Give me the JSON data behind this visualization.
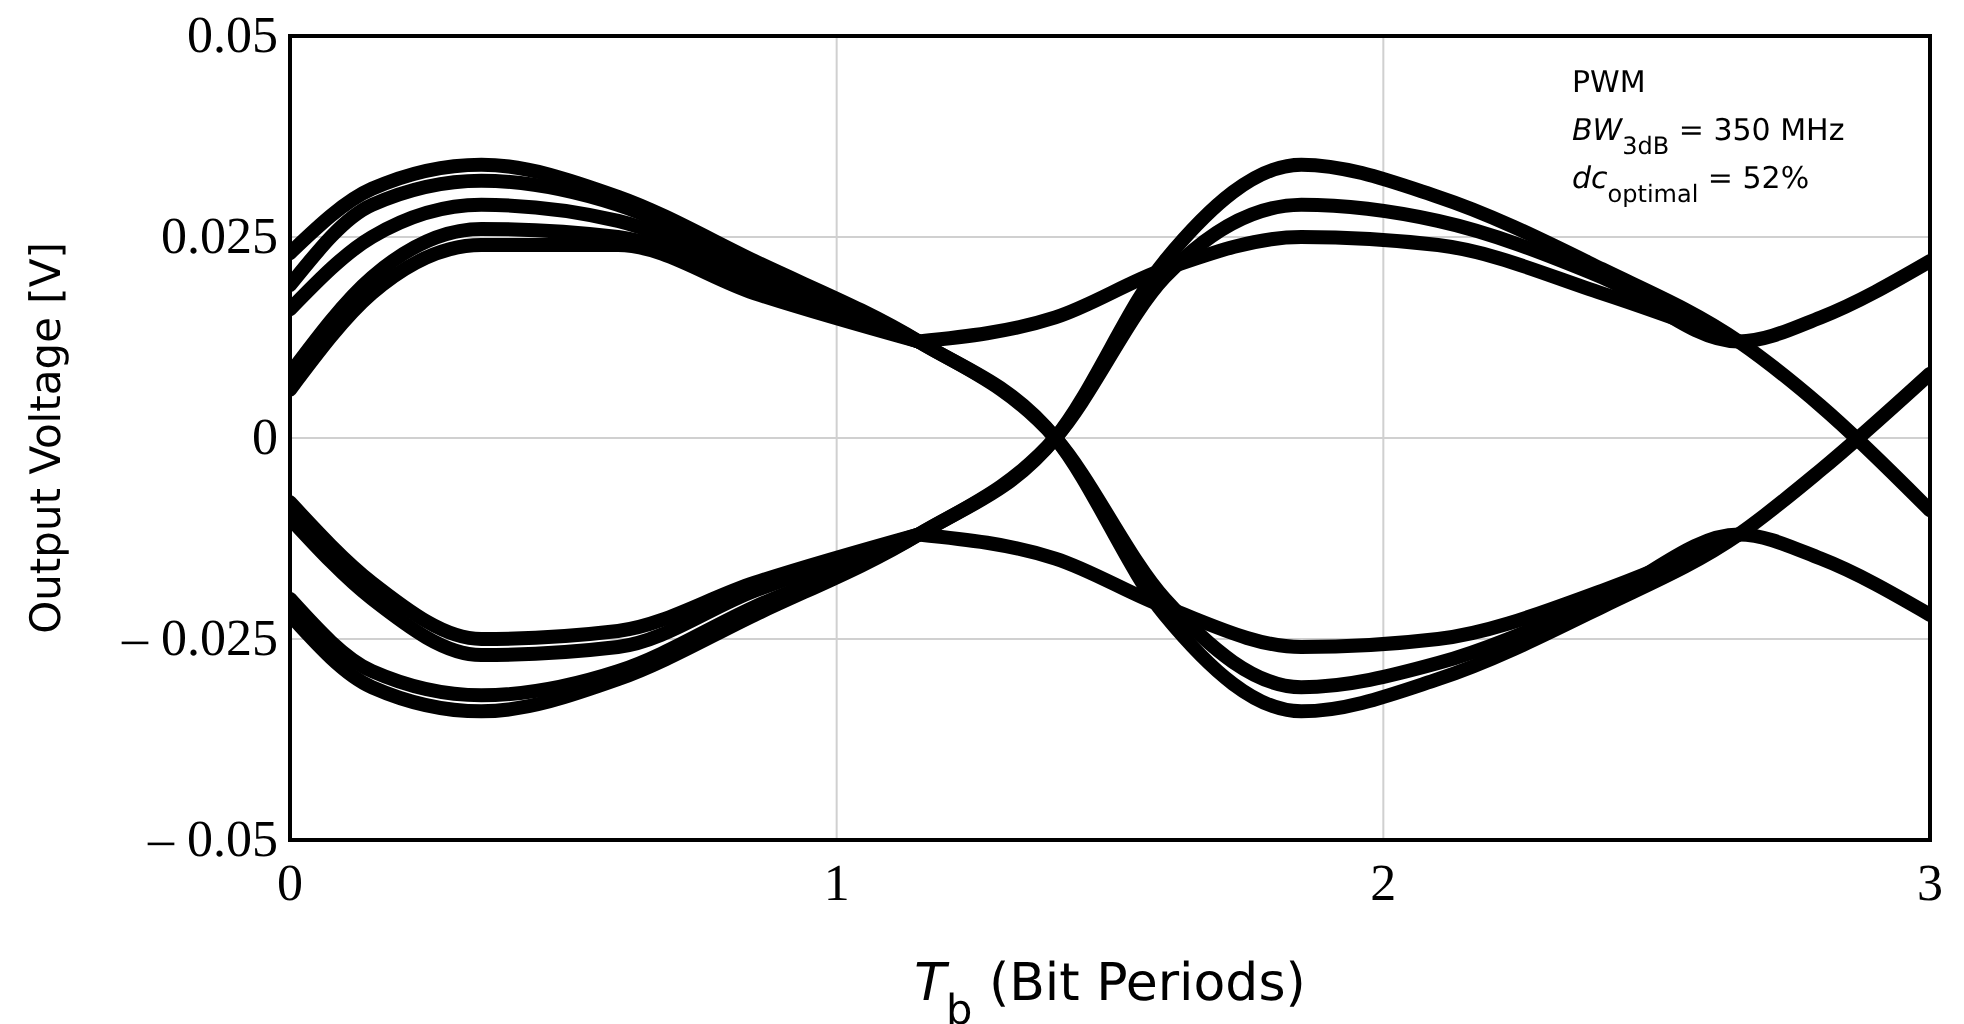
{
  "chart_data": {
    "type": "line",
    "xlabel": "T$_{b}$ (Bit Periods)",
    "ylabel": "Output  Voltage  [V]",
    "xlim": [
      0,
      3
    ],
    "xticks": [
      0,
      1,
      2,
      3
    ],
    "ylim": [
      -0.05,
      0.05
    ],
    "yticks": [
      {
        "value": -0.05,
        "label": "– 0.05"
      },
      {
        "value": -0.025,
        "label": "– 0.025"
      },
      0,
      {
        "value": 0.025,
        "label": "0.025"
      },
      {
        "value": 0.05,
        "label": "0.05"
      }
    ],
    "grid": true,
    "line_style": "solid",
    "marker": "none",
    "annotations": [
      "PWM",
      "BW$_{3dB}$ = 350 MHz",
      "dc$_{optimal}$ = 52%"
    ],
    "series": [
      {
        "color": "#000000",
        "x": [
          0,
          0.15,
          0.35,
          0.6,
          0.85,
          1.15,
          1.4,
          1.6,
          1.85,
          2.1,
          2.4,
          2.65,
          2.8,
          3
        ],
        "values": [
          0.023,
          0.031,
          0.034,
          0.03,
          0.022,
          0.012,
          0,
          -0.022,
          -0.034,
          -0.03,
          -0.021,
          -0.012,
          -0.004,
          0.008
        ]
      },
      {
        "color": "#000000",
        "x": [
          0,
          0.15,
          0.35,
          0.6,
          0.85,
          1.15,
          1.4,
          1.6,
          1.85,
          2.1,
          2.4,
          2.65,
          2.8,
          3
        ],
        "values": [
          0.019,
          0.029,
          0.032,
          0.029,
          0.021,
          0.012,
          0,
          -0.02,
          -0.031,
          -0.028,
          -0.02,
          -0.012,
          -0.015,
          -0.022
        ]
      },
      {
        "color": "#000000",
        "x": [
          0,
          0.15,
          0.35,
          0.6,
          0.85,
          1.15,
          1.4,
          1.6,
          1.85,
          2.1,
          2.4,
          2.65,
          2.8,
          3
        ],
        "values": [
          -0.022,
          -0.031,
          -0.034,
          -0.03,
          -0.022,
          -0.012,
          0,
          0.022,
          0.034,
          0.03,
          0.021,
          0.012,
          0.004,
          -0.009
        ]
      },
      {
        "color": "#000000",
        "x": [
          0,
          0.15,
          0.35,
          0.6,
          0.85,
          1.15,
          1.4,
          1.6,
          1.85,
          2.1,
          2.4,
          2.65,
          2.8,
          3
        ],
        "values": [
          -0.02,
          -0.029,
          -0.032,
          -0.029,
          -0.021,
          -0.012,
          0,
          0.02,
          0.029,
          0.027,
          0.02,
          0.012,
          0.015,
          0.022
        ]
      },
      {
        "color": "#000000",
        "x": [
          0,
          0.15,
          0.35,
          0.6,
          0.85,
          1.15
        ],
        "values": [
          0.016,
          0.025,
          0.029,
          0.027,
          0.02,
          0.012
        ]
      },
      {
        "color": "#000000",
        "x": [
          0,
          0.15,
          0.35,
          0.6,
          0.85,
          1.15
        ],
        "values": [
          0.008,
          0.02,
          0.026,
          0.025,
          0.019,
          0.012
        ]
      },
      {
        "color": "#000000",
        "x": [
          0,
          0.15,
          0.35,
          0.6,
          0.85,
          1.15
        ],
        "values": [
          0.006,
          0.018,
          0.024,
          0.024,
          0.018,
          0.012
        ]
      },
      {
        "color": "#000000",
        "x": [
          0,
          0.15,
          0.35,
          0.6,
          0.85,
          1.15
        ],
        "values": [
          -0.01,
          -0.02,
          -0.027,
          -0.026,
          -0.019,
          -0.012
        ]
      },
      {
        "color": "#000000",
        "x": [
          0,
          0.15,
          0.35,
          0.6,
          0.85,
          1.15
        ],
        "values": [
          -0.008,
          -0.018,
          -0.025,
          -0.024,
          -0.018,
          -0.012
        ]
      },
      {
        "color": "#000000",
        "x": [
          1.15,
          1.4,
          1.6,
          1.85,
          2.1,
          2.4,
          2.65
        ],
        "values": [
          -0.012,
          -0.015,
          -0.021,
          -0.026,
          -0.025,
          -0.019,
          -0.012
        ]
      },
      {
        "color": "#000000",
        "x": [
          1.15,
          1.4,
          1.6,
          1.85,
          2.1,
          2.4,
          2.65
        ],
        "values": [
          0.012,
          0.015,
          0.021,
          0.025,
          0.024,
          0.018,
          0.012
        ]
      }
    ]
  }
}
